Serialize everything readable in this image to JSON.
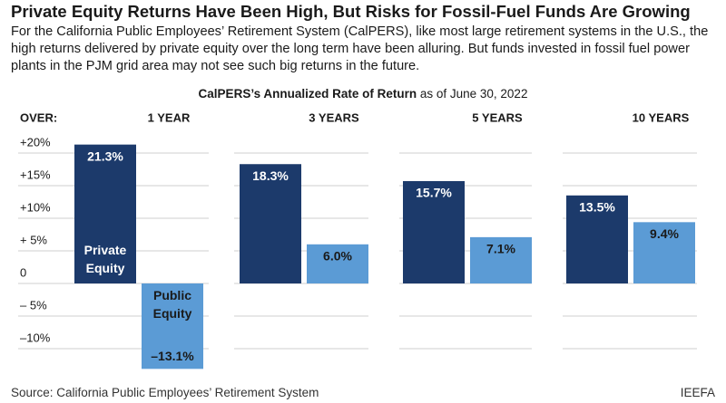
{
  "chart_data": {
    "type": "bar",
    "title": "Private Equity Returns Have Been High, But Risks for Fossil-Fuel Funds Are Growing",
    "subtitle": "For the California Public Employees’ Retirement System (CalPERS), like most large retirement systems in the U.S., the high returns delivered by private equity over the long term have been alluring. But funds invested in fossil fuel power plants in the PJM grid area may not see such big returns in the future.",
    "chart_title": "CalPERS’s Annualized Rate of Return",
    "chart_title_note": "as of June 30, 2022",
    "category_header": "OVER:",
    "categories": [
      "1 YEAR",
      "3 YEARS",
      "5 YEARS",
      "10 YEARS"
    ],
    "series": [
      {
        "name": "Private Equity",
        "color": "#1c3a6b",
        "values": [
          21.3,
          18.3,
          15.7,
          13.5
        ],
        "value_labels": [
          "21.3%",
          "18.3%",
          "15.7%",
          "13.5%"
        ]
      },
      {
        "name": "Public Equity",
        "color": "#5b9bd5",
        "values": [
          -13.1,
          6.0,
          7.1,
          9.4
        ],
        "value_labels": [
          "–13.1%",
          "6.0%",
          "7.1%",
          "9.4%"
        ]
      }
    ],
    "ylim": [
      -13.5,
      22.5
    ],
    "yticks": [
      {
        "value": 20,
        "label": "+20%"
      },
      {
        "value": 15,
        "label": "+15%"
      },
      {
        "value": 10,
        "label": "+10%"
      },
      {
        "value": 5,
        "label": "+ 5%"
      },
      0,
      {
        "value": -5,
        "label": "– 5%"
      },
      {
        "value": -10,
        "label": "–10%"
      }
    ],
    "grid": true,
    "source": "Source: California Public Employees’ Retirement System",
    "credit": "IEEFA"
  }
}
